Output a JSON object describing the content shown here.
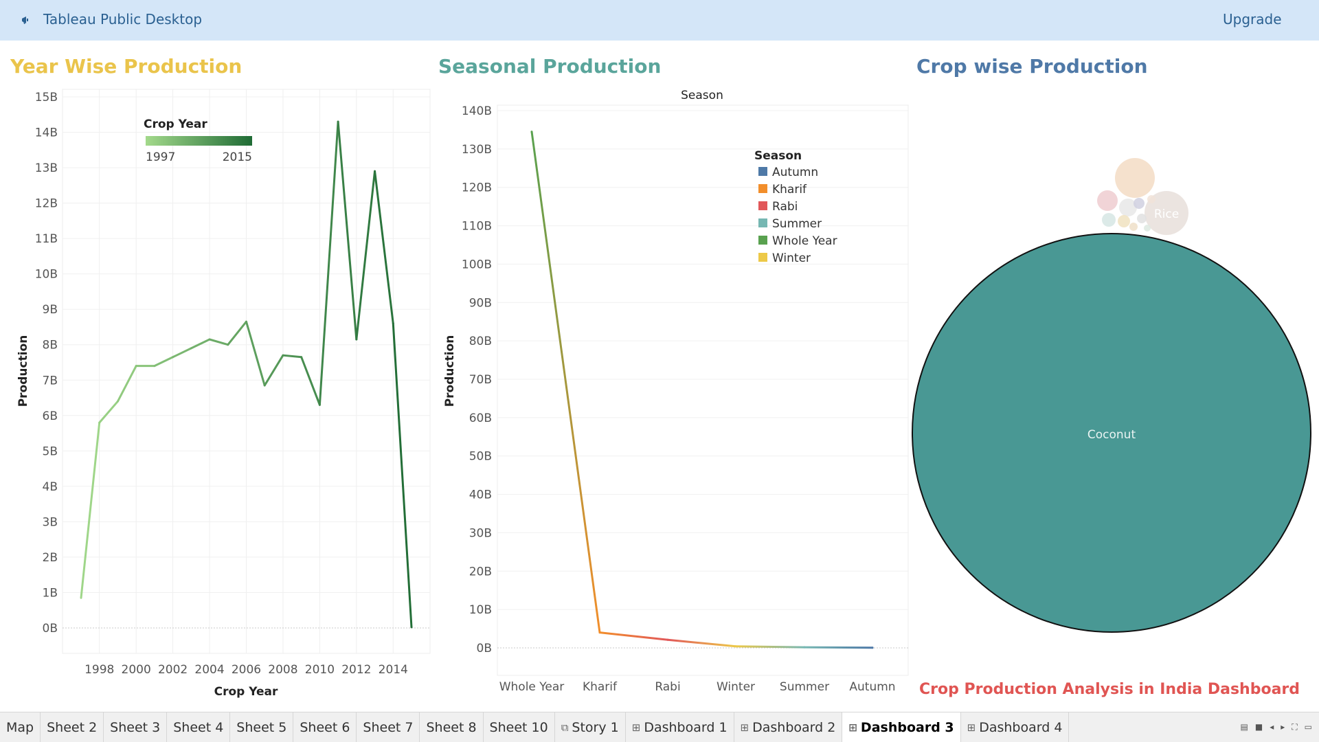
{
  "app": {
    "title": "Tableau Public Desktop",
    "upgrade_label": "Upgrade"
  },
  "dashboard": {
    "title_year": "Year Wise Production",
    "title_season": "Seasonal Production",
    "title_crop": "Crop wise Production",
    "footer_title": "Crop Production Analysis in India Dashboard",
    "colors": {
      "year_title": "#eac44b",
      "season_title": "#5aa59b",
      "crop_title": "#4f79a7",
      "footer": "#e05553"
    }
  },
  "chart_data": [
    {
      "type": "line",
      "xlabel": "Crop Year",
      "ylabel": "Production",
      "x": [
        1997,
        1998,
        1999,
        2000,
        2001,
        2002,
        2003,
        2004,
        2005,
        2006,
        2007,
        2008,
        2009,
        2010,
        2011,
        2012,
        2013,
        2014,
        2015
      ],
      "values": [
        0.85,
        5.8,
        6.4,
        7.4,
        7.4,
        7.65,
        7.9,
        8.15,
        8.0,
        8.65,
        6.85,
        7.7,
        7.65,
        6.3,
        14.3,
        8.15,
        12.9,
        8.6,
        0.02
      ],
      "value_unit": "B",
      "ylim": [
        0,
        15
      ],
      "yticks": [
        "0B",
        "1B",
        "2B",
        "3B",
        "4B",
        "5B",
        "6B",
        "7B",
        "8B",
        "9B",
        "10B",
        "11B",
        "12B",
        "13B",
        "14B",
        "15B"
      ],
      "xticks": [
        "1998",
        "2000",
        "2002",
        "2004",
        "2006",
        "2008",
        "2010",
        "2012",
        "2014"
      ],
      "xtick_values": [
        1998,
        2000,
        2002,
        2004,
        2006,
        2008,
        2010,
        2012,
        2014
      ],
      "legend": {
        "title": "Crop Year",
        "min": "1997",
        "max": "2015",
        "placement": "top",
        "color_min": "#a3d98b",
        "color_max": "#1f6b35"
      },
      "grid": true
    },
    {
      "type": "line",
      "title": "Season",
      "ylabel": "Production",
      "categories": [
        "Whole Year",
        "Kharif",
        "Rabi",
        "Winter",
        "Summer",
        "Autumn"
      ],
      "values": [
        134.5,
        4.0,
        2.1,
        0.4,
        0.15,
        0.05
      ],
      "value_unit": "B",
      "ylim": [
        -6.5,
        141
      ],
      "yticks": [
        "0B",
        "10B",
        "20B",
        "30B",
        "40B",
        "50B",
        "60B",
        "70B",
        "80B",
        "90B",
        "100B",
        "110B",
        "120B",
        "130B",
        "140B"
      ],
      "legend": {
        "title": "Season",
        "placement": "top-right",
        "items": [
          {
            "label": "Autumn",
            "color": "#4e79a7"
          },
          {
            "label": "Kharif",
            "color": "#f28e2b"
          },
          {
            "label": "Rabi",
            "color": "#e15759"
          },
          {
            "label": "Summer",
            "color": "#76b7b2"
          },
          {
            "label": "Whole Year",
            "color": "#59a14f"
          },
          {
            "label": "Winter",
            "color": "#edc948"
          }
        ]
      },
      "grid": true
    },
    {
      "type": "bubble",
      "labels": [
        {
          "text": "Coconut",
          "color": "#499894"
        },
        {
          "text": "Rice",
          "color": "#e8dfdb"
        }
      ]
    }
  ],
  "tabs": [
    {
      "label": "Map",
      "icon": ""
    },
    {
      "label": "Sheet 2",
      "icon": ""
    },
    {
      "label": "Sheet 3",
      "icon": ""
    },
    {
      "label": "Sheet 4",
      "icon": ""
    },
    {
      "label": "Sheet 5",
      "icon": ""
    },
    {
      "label": "Sheet 6",
      "icon": ""
    },
    {
      "label": "Sheet 7",
      "icon": ""
    },
    {
      "label": "Sheet 8",
      "icon": ""
    },
    {
      "label": "Sheet 10",
      "icon": ""
    },
    {
      "label": "Story 1",
      "icon": "story-icon"
    },
    {
      "label": "Dashboard 1",
      "icon": "dashboard-icon"
    },
    {
      "label": "Dashboard 2",
      "icon": "dashboard-icon"
    },
    {
      "label": "Dashboard 3",
      "icon": "dashboard-icon",
      "active": true
    },
    {
      "label": "Dashboard 4",
      "icon": "dashboard-icon"
    }
  ]
}
